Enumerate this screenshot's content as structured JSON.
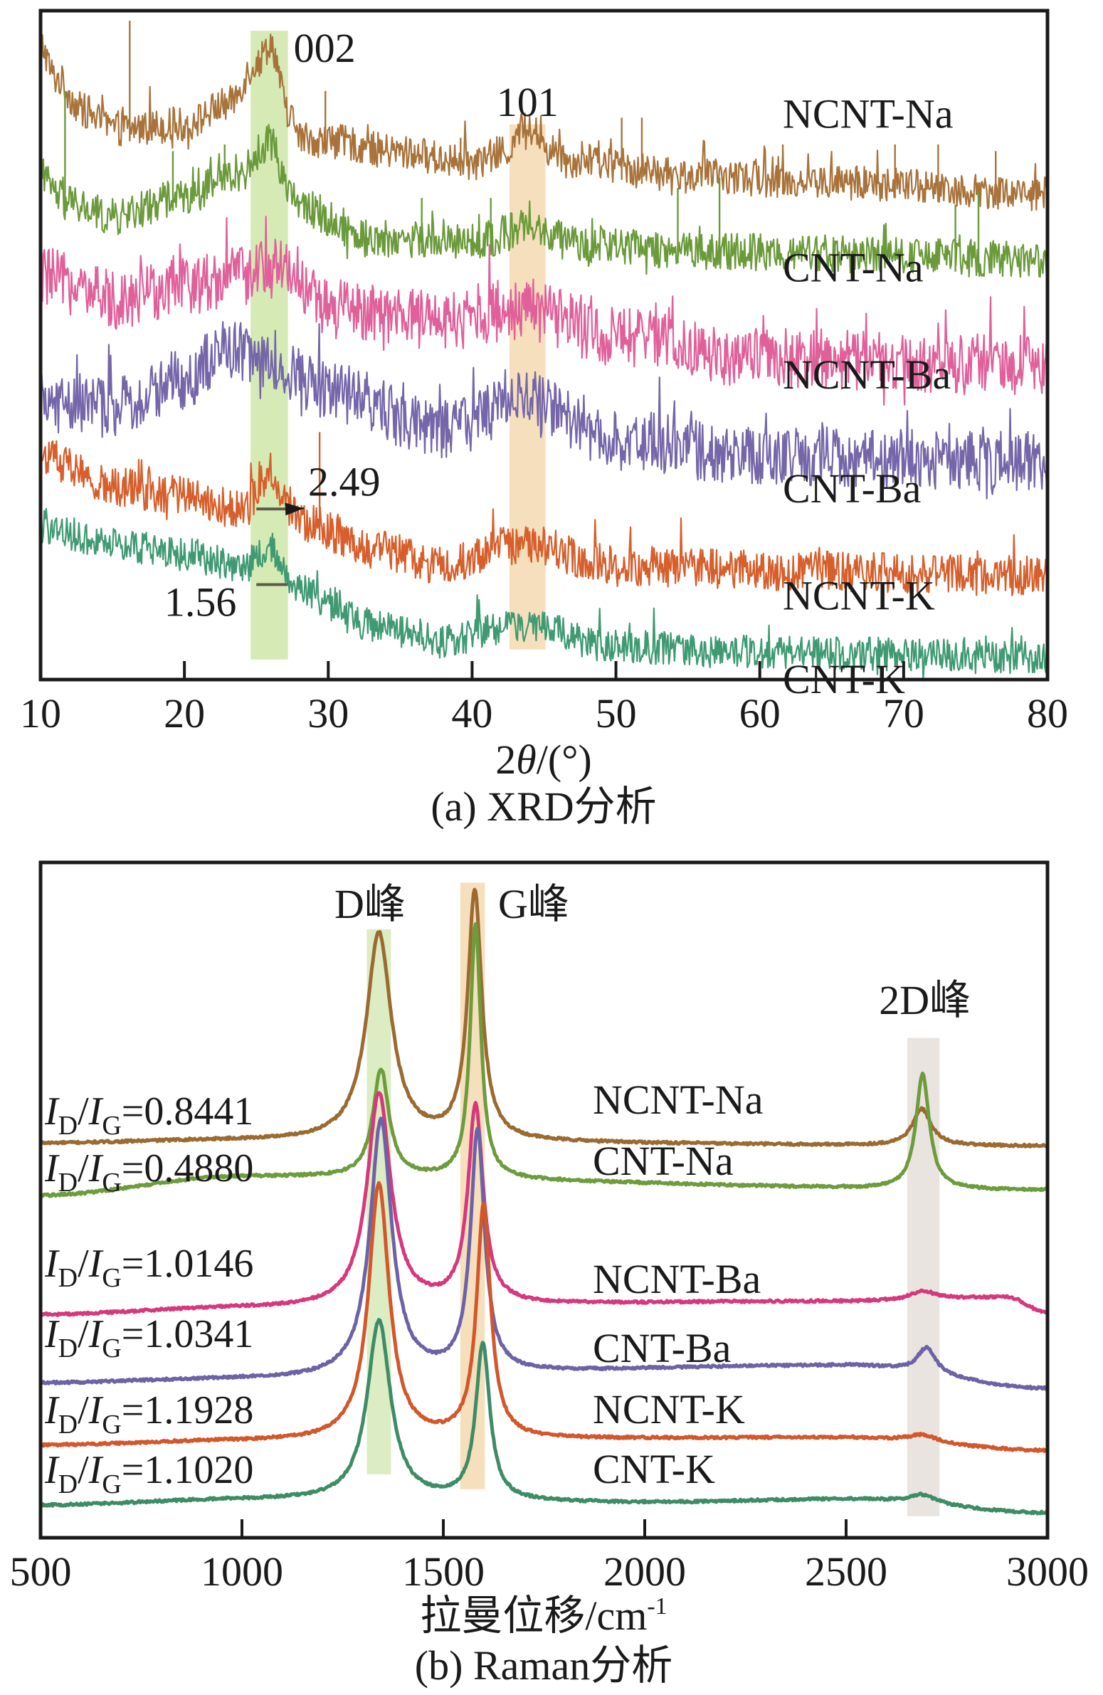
{
  "chart_data": [
    {
      "id": "xrd",
      "type": "line",
      "title": "(a) XRD分析",
      "xlabel": "2θ/(°)",
      "xlabel_parts": {
        "prefix": "2",
        "italic": "θ",
        "suffix": "/(°)"
      },
      "ylabel": "",
      "xlim": [
        10,
        80
      ],
      "ylim": [
        0,
        100
      ],
      "y_units": "a.u. (offset stacked)",
      "x_ticks": [
        10,
        20,
        30,
        40,
        50,
        60,
        70,
        80
      ],
      "grid": false,
      "legend": "inline labels at right",
      "bands": [
        {
          "name": "002",
          "label": "002",
          "x_range": [
            24.6,
            27.2
          ],
          "y_range": [
            3,
            97
          ],
          "color": "#cfe6a8"
        },
        {
          "name": "101",
          "label": "101",
          "x_range": [
            42.6,
            45.1
          ],
          "y_range": [
            4.5,
            83
          ],
          "color": "#f5d9b0"
        }
      ],
      "annotations": [
        {
          "text": "2.49",
          "target_series": "NCNT-K",
          "x": 28.6,
          "y": 27.5,
          "marker_x_range": [
            25.0,
            27.2
          ],
          "marker_y": 25.5,
          "arrow": true
        },
        {
          "text": "1.56",
          "target_series": "CNT-K",
          "x": 18.6,
          "y": 9.5,
          "marker_x_range": [
            25.0,
            27.2
          ],
          "marker_y": 14.2,
          "arrow": false
        }
      ],
      "series": [
        {
          "name": "NCNT-Na",
          "label": "NCNT-Na",
          "color": "#a8733a",
          "noise": 2.6,
          "label_y": 82.5,
          "points": [
            [
              10,
              95
            ],
            [
              11,
              90
            ],
            [
              13,
              85
            ],
            [
              15,
              82.4
            ],
            [
              20,
              82.9
            ],
            [
              23,
              86
            ],
            [
              25,
              92
            ],
            [
              26,
              95.1
            ],
            [
              27.2,
              85
            ],
            [
              28,
              81
            ],
            [
              30,
              80.5
            ],
            [
              35,
              78.8
            ],
            [
              40,
              77.2
            ],
            [
              42.5,
              79
            ],
            [
              43.8,
              83
            ],
            [
              45.5,
              79
            ],
            [
              47,
              77.6
            ],
            [
              55,
              75.3
            ],
            [
              65,
              74.3
            ],
            [
              80,
              72.7
            ]
          ],
          "spikes": [
            [
              16.2,
              98.5
            ],
            [
              29.8,
              88
            ],
            [
              39.2,
              81
            ],
            [
              50.4,
              84
            ],
            [
              51.8,
              84
            ],
            [
              61.6,
              80
            ],
            [
              69.4,
              80
            ],
            [
              72.4,
              80
            ],
            [
              76.4,
              79
            ]
          ]
        },
        {
          "name": "CNT-Na",
          "label": "CNT-Na",
          "color": "#6a9a3a",
          "noise": 2.8,
          "label_y": 59.5,
          "points": [
            [
              10,
              74.8
            ],
            [
              12,
              71
            ],
            [
              15,
              69.1
            ],
            [
              20,
              72.3
            ],
            [
              24,
              75.9
            ],
            [
              26,
              80.5
            ],
            [
              27.2,
              74
            ],
            [
              28,
              70.7
            ],
            [
              33,
              65.9
            ],
            [
              40,
              65.5
            ],
            [
              43.8,
              67.4
            ],
            [
              48,
              64.6
            ],
            [
              60,
              63.9
            ],
            [
              80,
              62.7
            ]
          ],
          "spikes": [
            [
              11.7,
              88
            ],
            [
              19.2,
              79
            ],
            [
              22.8,
              80
            ],
            [
              36.5,
              72
            ],
            [
              41.3,
              72
            ],
            [
              54.3,
              73.5
            ],
            [
              57.2,
              75
            ],
            [
              73.6,
              71
            ],
            [
              75.2,
              73
            ]
          ]
        },
        {
          "name": "NCNT-Ba",
          "label": "NCNT-Ba",
          "color": "#e0609a",
          "noise": 4.5,
          "label_y": 43.5,
          "points": [
            [
              10,
              60.2
            ],
            [
              15,
              56.9
            ],
            [
              20,
              59.0
            ],
            [
              25,
              61.0
            ],
            [
              27,
              61.8
            ],
            [
              30,
              55.3
            ],
            [
              38,
              53.7
            ],
            [
              43.5,
              55.3
            ],
            [
              50,
              51.3
            ],
            [
              60,
              48.0
            ],
            [
              80,
              47.1
            ]
          ],
          "spikes": []
        },
        {
          "name": "CNT-Ba",
          "label": "CNT-Ba",
          "color": "#7466a8",
          "noise": 4.5,
          "label_y": 26.5,
          "points": [
            [
              10,
              41.5
            ],
            [
              15,
              40.7
            ],
            [
              20,
              44.8
            ],
            [
              23,
              49.6
            ],
            [
              26,
              47.1
            ],
            [
              30,
              43.1
            ],
            [
              38,
              37.4
            ],
            [
              43.5,
              41.8
            ],
            [
              50,
              35.8
            ],
            [
              60,
              33.4
            ],
            [
              80,
              32.6
            ]
          ],
          "spikes": []
        },
        {
          "name": "NCNT-K",
          "label": "NCNT-K",
          "color": "#d65f2c",
          "noise": 3.0,
          "label_y": 10.5,
          "points": [
            [
              10,
              33.4
            ],
            [
              15,
              28.8
            ],
            [
              20,
              27.7
            ],
            [
              24,
              25.2
            ],
            [
              26,
              31
            ],
            [
              27.2,
              26
            ],
            [
              28,
              23.6
            ],
            [
              33,
              19.6
            ],
            [
              38,
              17.1
            ],
            [
              43.5,
              20.3
            ],
            [
              50,
              17.1
            ],
            [
              60,
              16.3
            ],
            [
              80,
              15.5
            ]
          ],
          "spikes": [
            [
              29.4,
              37
            ]
          ]
        },
        {
          "name": "CNT-K",
          "label": "CNT-K",
          "color": "#3f9a72",
          "noise": 2.5,
          "label_y": -2,
          "points": [
            [
              10,
              22.8
            ],
            [
              15,
              20.3
            ],
            [
              20,
              18.7
            ],
            [
              24,
              16.8
            ],
            [
              26,
              19.6
            ],
            [
              27.2,
              15.5
            ],
            [
              28,
              13.1
            ],
            [
              33,
              8.2
            ],
            [
              38,
              5.7
            ],
            [
              43.5,
              8.2
            ],
            [
              50,
              4.9
            ],
            [
              60,
              4.1
            ],
            [
              80,
              3.3
            ]
          ],
          "spikes": []
        }
      ]
    },
    {
      "id": "raman",
      "type": "line",
      "title": "(b) Raman分析",
      "xlabel": "拉曼位移/cm⁻¹",
      "xlabel_parts": {
        "main": "拉曼位移/cm",
        "sup": "-1"
      },
      "ylabel": "",
      "xlim": [
        500,
        3000
      ],
      "ylim": [
        0,
        100
      ],
      "y_units": "a.u. (offset stacked)",
      "x_ticks": [
        500,
        1000,
        1500,
        2000,
        2500,
        3000
      ],
      "grid": false,
      "legend": "inline labels at center",
      "bands": [
        {
          "name": "D",
          "label": "D峰",
          "x_range": [
            1310,
            1370
          ],
          "y_range": [
            9.4,
            90.1
          ],
          "color": "#d6e9b8"
        },
        {
          "name": "G",
          "label": "G峰",
          "x_range": [
            1542,
            1603
          ],
          "y_range": [
            7.2,
            97
          ],
          "color": "#f5d9b0"
        },
        {
          "name": "2D",
          "label": "2D峰",
          "x_range": [
            2652,
            2732
          ],
          "y_range": [
            3.2,
            74
          ],
          "color": "#e6dfda"
        }
      ],
      "series": [
        {
          "name": "NCNT-Na",
          "label": "NCNT-Na",
          "color": "#9b6a30",
          "ratio_label": "I_D/I_G=0.8441",
          "ratio": {
            "D": "D",
            "G": "G",
            "value": "=0.8441"
          },
          "baseline": [
            [
              500,
              58.4
            ],
            [
              950,
              58.8
            ],
            [
              3000,
              58.0
            ]
          ],
          "baseline_rise": 1.0,
          "peaks": [
            {
              "pos": 1340,
              "height": 89.7,
              "width": 75
            },
            {
              "pos": 1578,
              "height": 96.1,
              "width": 42
            },
            {
              "pos": 2688,
              "height": 63.5,
              "width": 55
            }
          ],
          "valley": 75.7
        },
        {
          "name": "CNT-Na",
          "label": "CNT-Na",
          "color": "#6c9c3c",
          "ratio_label": "I_D/I_G=0.4880",
          "ratio": {
            "D": "D",
            "G": "G",
            "value": "=0.4880"
          },
          "baseline": [
            [
              500,
              50.7
            ],
            [
              1000,
              53.5
            ],
            [
              3000,
              51.5
            ]
          ],
          "peaks": [
            {
              "pos": 1345,
              "height": 69.5,
              "width": 48
            },
            {
              "pos": 1580,
              "height": 90.9,
              "width": 32
            },
            {
              "pos": 2690,
              "height": 68.7,
              "width": 40
            }
          ],
          "valley": 58.3
        },
        {
          "name": "NCNT-Ba",
          "label": "NCNT-Ba",
          "color": "#d6387c",
          "ratio_label": "I_D/I_G=1.0146",
          "ratio": {
            "D": "D",
            "G": "G",
            "value": "=1.0146"
          },
          "baseline": [
            [
              500,
              33.0
            ],
            [
              1000,
              34.0
            ],
            [
              2500,
              35.0
            ],
            [
              2900,
              35.6
            ],
            [
              3000,
              33.3
            ]
          ],
          "peaks": [
            {
              "pos": 1340,
              "height": 66.0,
              "width": 70
            },
            {
              "pos": 1580,
              "height": 64.4,
              "width": 45
            },
            {
              "pos": 2690,
              "height": 36.6,
              "width": 70
            }
          ],
          "valley": 52.3
        },
        {
          "name": "CNT-Ba",
          "label": "CNT-Ba",
          "color": "#6b63a6",
          "ratio_label": "I_D/I_G=1.0341",
          "ratio": {
            "D": "D",
            "G": "G",
            "value": "=1.0341"
          },
          "baseline": [
            [
              500,
              22.9
            ],
            [
              1000,
              23.5
            ],
            [
              2500,
              25.5
            ],
            [
              3000,
              22.1
            ]
          ],
          "peaks": [
            {
              "pos": 1345,
              "height": 62.0,
              "width": 65
            },
            {
              "pos": 1585,
              "height": 60.7,
              "width": 42
            },
            {
              "pos": 2700,
              "height": 28.2,
              "width": 55
            }
          ],
          "valley": 43.5
        },
        {
          "name": "NCNT-K",
          "label": "NCNT-K",
          "color": "#d2572b",
          "ratio_label": "I_D/I_G=1.1928",
          "ratio": {
            "D": "D",
            "G": "G",
            "value": "=1.1928"
          },
          "baseline": [
            [
              500,
              13.7
            ],
            [
              1000,
              14.3
            ],
            [
              2500,
              14.8
            ],
            [
              3000,
              12.9
            ]
          ],
          "peaks": [
            {
              "pos": 1340,
              "height": 52.4,
              "width": 62
            },
            {
              "pos": 1600,
              "height": 49.4,
              "width": 42
            },
            {
              "pos": 2690,
              "height": 15.3,
              "width": 80
            }
          ],
          "valley": 33.8
        },
        {
          "name": "CNT-K",
          "label": "CNT-K",
          "color": "#3d8c66",
          "ratio_label": "I_D/I_G=1.1020",
          "ratio": {
            "D": "D",
            "G": "G",
            "value": "=1.1020"
          },
          "baseline": [
            [
              500,
              4.8
            ],
            [
              1000,
              5.6
            ],
            [
              2000,
              5.2
            ],
            [
              2500,
              5.7
            ],
            [
              3000,
              3.7
            ]
          ],
          "peaks": [
            {
              "pos": 1340,
              "height": 32.2,
              "width": 70
            },
            {
              "pos": 1598,
              "height": 29.0,
              "width": 42
            },
            {
              "pos": 2690,
              "height": 6.4,
              "width": 80
            }
          ],
          "valley": 18.5
        }
      ]
    }
  ],
  "figure": {
    "panels": [
      "(a) XRD分析",
      "(b) Raman分析"
    ]
  }
}
